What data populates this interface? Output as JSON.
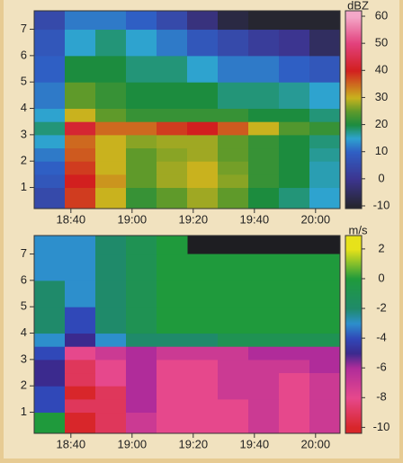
{
  "chart_data": [
    {
      "type": "heatmap",
      "colorbar_label": "dBZ",
      "x_edges": [
        1108,
        1118,
        1128,
        1138,
        1148,
        1158,
        1168,
        1178,
        1188,
        1198,
        1208
      ],
      "y_edges": [
        0.2,
        1,
        1.5,
        2,
        2.5,
        3,
        3.5,
        4,
        5,
        6,
        7,
        7.7
      ],
      "z": [
        [
          5,
          38,
          30,
          22,
          25,
          28,
          25,
          20,
          18,
          15
        ],
        [
          8,
          40,
          32,
          25,
          28,
          30,
          27,
          22,
          20,
          16
        ],
        [
          10,
          38,
          30,
          25,
          28,
          30,
          26,
          22,
          20,
          16
        ],
        [
          12,
          36,
          30,
          25,
          27,
          28,
          25,
          22,
          20,
          17
        ],
        [
          15,
          35,
          30,
          27,
          28,
          28,
          25,
          22,
          20,
          18
        ],
        [
          18,
          42,
          35,
          35,
          38,
          40,
          36,
          30,
          24,
          22
        ],
        [
          15,
          30,
          25,
          22,
          22,
          22,
          22,
          20,
          20,
          18
        ],
        [
          12,
          25,
          22,
          20,
          20,
          20,
          18,
          18,
          17,
          15
        ],
        [
          10,
          20,
          20,
          18,
          18,
          15,
          12,
          12,
          10,
          8
        ],
        [
          8,
          15,
          18,
          15,
          12,
          8,
          5,
          2,
          0,
          -5
        ],
        [
          5,
          12,
          12,
          10,
          5,
          -2,
          -8,
          -10,
          -10,
          -10
        ]
      ],
      "xlim": [
        1108,
        1208
      ],
      "ylim": [
        0.2,
        7.7
      ],
      "xticks": [
        {
          "value": 1120,
          "label": "18:40"
        },
        {
          "value": 1140,
          "label": "19:00"
        },
        {
          "value": 1160,
          "label": "19:20"
        },
        {
          "value": 1180,
          "label": "19:40"
        },
        {
          "value": 1200,
          "label": "20:00"
        }
      ],
      "yticks": [
        1,
        2,
        3,
        4,
        5,
        6,
        7
      ],
      "clim": [
        -11,
        62
      ],
      "cticks": [
        60,
        50,
        40,
        30,
        20,
        10,
        0,
        -10
      ],
      "colorscale": [
        {
          "value": -10,
          "color": "#262630"
        },
        {
          "value": 0,
          "color": "#3c3590"
        },
        {
          "value": 10,
          "color": "#2f5fc4"
        },
        {
          "value": 15,
          "color": "#2ea3cf"
        },
        {
          "value": 20,
          "color": "#1c8c3e"
        },
        {
          "value": 25,
          "color": "#5f9a2a"
        },
        {
          "value": 30,
          "color": "#c9b21e"
        },
        {
          "value": 40,
          "color": "#d21f1f"
        },
        {
          "value": 50,
          "color": "#e2417d"
        },
        {
          "value": 60,
          "color": "#f4a8c8"
        }
      ]
    },
    {
      "type": "heatmap",
      "colorbar_label": "m/s",
      "x_edges": [
        1108,
        1118,
        1128,
        1138,
        1148,
        1158,
        1168,
        1178,
        1188,
        1198,
        1208
      ],
      "y_edges": [
        0.2,
        1,
        1.5,
        2,
        2.5,
        3,
        3.5,
        4,
        5,
        6,
        7,
        7.7
      ],
      "z": [
        [
          0,
          -10,
          -9,
          -7,
          -8,
          -8,
          -8,
          -7,
          -8,
          -7
        ],
        [
          -4,
          -9,
          -9,
          -6,
          -8,
          -8,
          -8,
          -7,
          -8,
          -7
        ],
        [
          -4,
          -10,
          -9,
          -6,
          -8,
          -8,
          -7,
          -7,
          -8,
          -7
        ],
        [
          -5,
          -9,
          -8,
          -6,
          -8,
          -8,
          -7,
          -7,
          -8,
          -7
        ],
        [
          -5,
          -9,
          -8,
          -6,
          -8,
          -8,
          -7,
          -7,
          -7,
          -6
        ],
        [
          -4,
          -8,
          -7,
          -6,
          -7,
          -7,
          -7,
          -6,
          -6,
          -6
        ],
        [
          -3,
          -5,
          -3,
          -2,
          -2,
          -2,
          -1,
          -1,
          -1,
          -1
        ],
        [
          -2,
          -4,
          -2,
          -1,
          0,
          0,
          0,
          0,
          0,
          0
        ],
        [
          -2,
          -3,
          -2,
          -1,
          0,
          0,
          0,
          0,
          0,
          0
        ],
        [
          -3,
          -3,
          -2,
          -1,
          0,
          0,
          0,
          0,
          0,
          0
        ],
        [
          -3,
          -3,
          -2,
          -1,
          0,
          null,
          null,
          null,
          null,
          null
        ]
      ],
      "xlim": [
        1108,
        1208
      ],
      "ylim": [
        0.2,
        7.7
      ],
      "xticks": [
        {
          "value": 1120,
          "label": "18:40"
        },
        {
          "value": 1140,
          "label": "19:00"
        },
        {
          "value": 1160,
          "label": "19:20"
        },
        {
          "value": 1180,
          "label": "19:40"
        },
        {
          "value": 1200,
          "label": "20:00"
        }
      ],
      "yticks": [
        1,
        2,
        3,
        4,
        5,
        6,
        7
      ],
      "clim": [
        -10.4,
        2.9
      ],
      "cticks": [
        2,
        0,
        -2,
        -4,
        -6,
        -8,
        -10
      ],
      "colorscale": [
        {
          "value": -10,
          "color": "#d8262a"
        },
        {
          "value": -8,
          "color": "#e6488c"
        },
        {
          "value": -6,
          "color": "#b02c9a"
        },
        {
          "value": -5,
          "color": "#3b2a8e"
        },
        {
          "value": -4,
          "color": "#3048b8"
        },
        {
          "value": -3,
          "color": "#2d8fcc"
        },
        {
          "value": -2,
          "color": "#1f8a6a"
        },
        {
          "value": 0,
          "color": "#1f9a3c"
        },
        {
          "value": 2,
          "color": "#e7e21a"
        }
      ],
      "nodata_color": "#1e1e22"
    }
  ]
}
